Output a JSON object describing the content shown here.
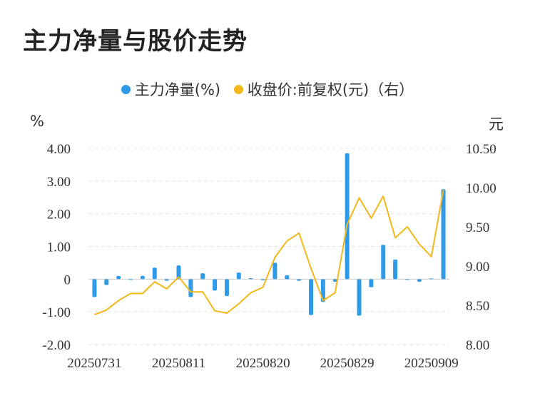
{
  "title": "主力净量与股价走势",
  "legend": [
    {
      "label": "主力净量(%)",
      "color": "#2f9be8"
    },
    {
      "label": "收盘价:前复权(元)（右）",
      "color": "#f2b81b"
    }
  ],
  "left_unit": "%",
  "right_unit": "元",
  "chart_data": {
    "type": "bar+line",
    "x_tick_labels": [
      "20250731",
      "20250811",
      "20250820",
      "20250829",
      "20250909"
    ],
    "x_tick_index": [
      0,
      7,
      14,
      21,
      28
    ],
    "y_left_ticks": [
      "4.00",
      "3.00",
      "2.00",
      "1.00",
      "0",
      "-1.00",
      "-2.00"
    ],
    "y_left_range": [
      -2,
      4
    ],
    "y_right_ticks": [
      "10.50",
      "10.00",
      "9.50",
      "9.00",
      "8.50",
      "8.00"
    ],
    "y_right_range": [
      8,
      10.5
    ],
    "grid": true,
    "legend_position": "top-center",
    "series": [
      {
        "name": "主力净量(%)",
        "type": "bar",
        "axis": "left",
        "color": "#2f9be8",
        "values": [
          -0.55,
          -0.18,
          0.1,
          -0.02,
          0.1,
          0.35,
          -0.05,
          0.42,
          -0.55,
          0.18,
          -0.35,
          -0.52,
          0.2,
          0.03,
          -0.03,
          0.5,
          0.12,
          -0.05,
          -1.1,
          -0.7,
          -0.08,
          3.85,
          -1.12,
          -0.25,
          1.05,
          0.6,
          -0.02,
          -0.08,
          0.02,
          2.75
        ]
      },
      {
        "name": "收盘价:前复权(元)（右）",
        "type": "line",
        "axis": "right",
        "color": "#f2b81b",
        "values": [
          8.38,
          8.44,
          8.56,
          8.65,
          8.65,
          8.8,
          8.71,
          8.86,
          8.67,
          8.67,
          8.43,
          8.4,
          8.52,
          8.66,
          8.73,
          9.11,
          9.32,
          9.42,
          8.97,
          8.56,
          8.66,
          9.53,
          9.87,
          9.61,
          9.89,
          9.36,
          9.5,
          9.28,
          9.12,
          9.97
        ]
      }
    ]
  }
}
